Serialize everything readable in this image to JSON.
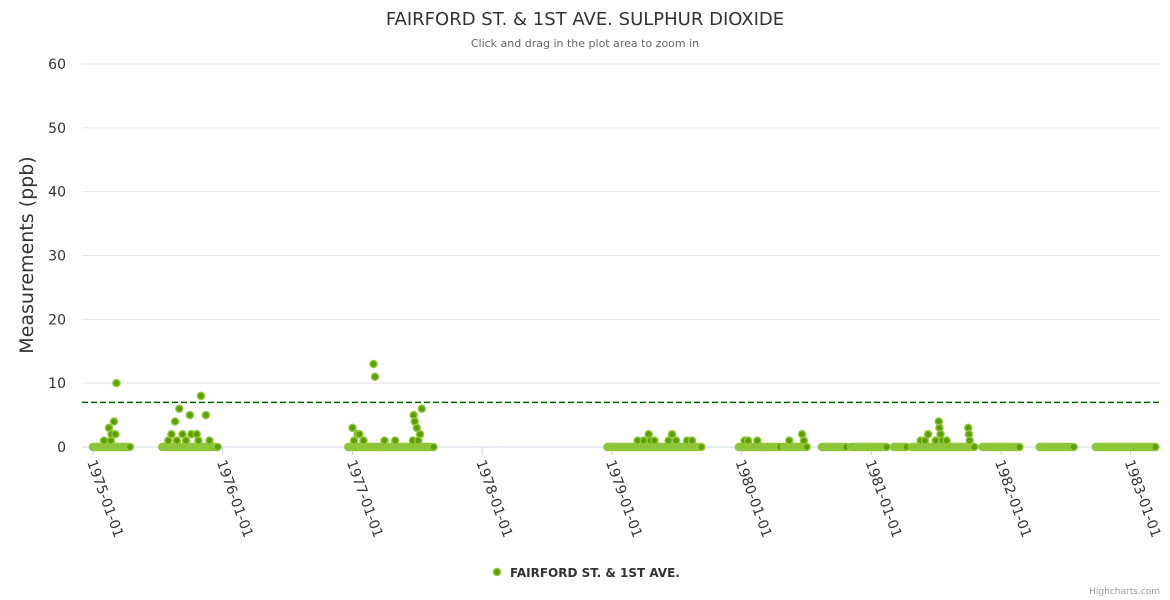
{
  "chart_data": {
    "type": "scatter",
    "title": "FAIRFORD ST. & 1ST AVE. SULPHUR DIOXIDE",
    "subtitle": "Click and drag in the plot area to zoom in",
    "ylabel": "Measurements (ppb)",
    "xlabel": "",
    "ylim": [
      0,
      60
    ],
    "yticks": [
      0,
      10,
      20,
      30,
      40,
      50,
      60
    ],
    "xlim": [
      "1974-12-01",
      "1983-03-25"
    ],
    "xticks": [
      "1975-01-01",
      "1976-01-01",
      "1977-01-01",
      "1978-01-01",
      "1979-01-01",
      "1980-01-01",
      "1981-01-01",
      "1982-01-01",
      "1983-01-01"
    ],
    "grid": true,
    "legend": "bottom-center",
    "threshold": 7,
    "colors": {
      "marker_fill": "#5a9e00",
      "marker_stroke": "#8fc63a",
      "threshold": "#006400",
      "grid": "#e6e6e6"
    },
    "series": [
      {
        "name": "FAIRFORD ST. & 1ST AVE.",
        "zero_ranges": [
          [
            "1975-01-01",
            "1975-04-15"
          ],
          [
            "1975-07-15",
            "1975-12-20"
          ],
          [
            "1976-12-20",
            "1977-08-20"
          ],
          [
            "1978-12-20",
            "1979-09-10"
          ],
          [
            "1979-12-25",
            "1980-04-20"
          ],
          [
            "1980-04-30",
            "1980-07-05"
          ],
          [
            "1980-08-15",
            "1980-10-25"
          ],
          [
            "1980-11-05",
            "1981-02-15"
          ],
          [
            "1981-03-05",
            "1981-04-10"
          ],
          [
            "1981-04-25",
            "1981-10-20"
          ],
          [
            "1981-11-10",
            "1982-02-25"
          ],
          [
            "1982-04-20",
            "1982-07-25"
          ],
          [
            "1982-09-25",
            "1983-03-15"
          ]
        ],
        "points": [
          [
            "1975-02-01",
            1
          ],
          [
            "1975-02-15",
            3
          ],
          [
            "1975-02-20",
            1
          ],
          [
            "1975-02-22",
            2
          ],
          [
            "1975-03-01",
            4
          ],
          [
            "1975-03-05",
            2
          ],
          [
            "1975-03-08",
            10
          ],
          [
            "1975-08-01",
            1
          ],
          [
            "1975-08-10",
            2
          ],
          [
            "1975-08-20",
            4
          ],
          [
            "1975-08-25",
            1
          ],
          [
            "1975-09-01",
            6
          ],
          [
            "1975-09-10",
            2
          ],
          [
            "1975-09-20",
            1
          ],
          [
            "1975-10-01",
            5
          ],
          [
            "1975-10-05",
            2
          ],
          [
            "1975-10-20",
            2
          ],
          [
            "1975-10-25",
            1
          ],
          [
            "1975-11-01",
            8
          ],
          [
            "1975-11-15",
            5
          ],
          [
            "1975-11-25",
            1
          ],
          [
            "1977-01-01",
            3
          ],
          [
            "1977-01-05",
            1
          ],
          [
            "1977-01-15",
            2
          ],
          [
            "1977-01-20",
            2
          ],
          [
            "1977-02-01",
            1
          ],
          [
            "1977-03-01",
            13
          ],
          [
            "1977-03-05",
            11
          ],
          [
            "1977-04-01",
            1
          ],
          [
            "1977-05-01",
            1
          ],
          [
            "1977-06-20",
            1
          ],
          [
            "1977-06-22",
            5
          ],
          [
            "1977-06-25",
            4
          ],
          [
            "1977-07-01",
            3
          ],
          [
            "1977-07-05",
            1
          ],
          [
            "1977-07-10",
            2
          ],
          [
            "1977-07-15",
            6
          ],
          [
            "1979-03-15",
            1
          ],
          [
            "1979-04-01",
            1
          ],
          [
            "1979-04-15",
            2
          ],
          [
            "1979-04-20",
            1
          ],
          [
            "1979-05-01",
            1
          ],
          [
            "1979-06-10",
            1
          ],
          [
            "1979-06-20",
            2
          ],
          [
            "1979-07-01",
            1
          ],
          [
            "1979-08-01",
            1
          ],
          [
            "1979-08-15",
            1
          ],
          [
            "1980-01-10",
            1
          ],
          [
            "1980-01-20",
            1
          ],
          [
            "1980-02-15",
            1
          ],
          [
            "1980-05-15",
            1
          ],
          [
            "1980-06-20",
            2
          ],
          [
            "1980-06-25",
            1
          ],
          [
            "1981-05-20",
            1
          ],
          [
            "1981-06-01",
            1
          ],
          [
            "1981-06-10",
            2
          ],
          [
            "1981-07-01",
            1
          ],
          [
            "1981-07-10",
            4
          ],
          [
            "1981-07-12",
            3
          ],
          [
            "1981-07-15",
            2
          ],
          [
            "1981-07-20",
            1
          ],
          [
            "1981-08-01",
            1
          ],
          [
            "1981-10-01",
            3
          ],
          [
            "1981-10-03",
            2
          ],
          [
            "1981-10-05",
            1
          ]
        ]
      }
    ]
  },
  "legend": {
    "label": "FAIRFORD ST. & 1ST AVE."
  },
  "credits": "Highcharts.com"
}
